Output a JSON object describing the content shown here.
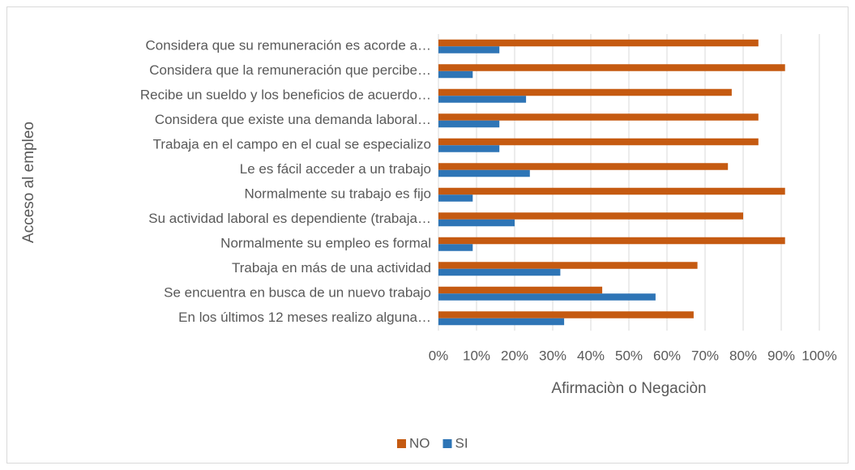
{
  "chart_data": {
    "type": "hbar",
    "x_label": "Afirmaciòn o Negaciòn",
    "y_label": "Acceso al empleo",
    "categories": [
      "Considera que su remuneración es acorde a…",
      "Considera que la remuneración que percibe…",
      "Recibe un sueldo y los beneficios de acuerdo…",
      "Considera que existe una demanda laboral…",
      "Trabaja en el campo en el cual se especializo",
      "Le es fácil acceder a un trabajo",
      "Normalmente su trabajo es fijo",
      "Su actividad laboral es dependiente (trabaja…",
      "Normalmente su empleo es formal",
      "Trabaja en más de una actividad",
      "Se encuentra en busca de un nuevo trabajo",
      "En los últimos 12 meses realizo alguna…"
    ],
    "series": [
      {
        "name": "NO",
        "color": "#c55a11",
        "values": [
          84,
          91,
          77,
          84,
          84,
          76,
          91,
          80,
          91,
          68,
          43,
          67
        ]
      },
      {
        "name": "SI",
        "color": "#2e75b6",
        "values": [
          16,
          9,
          23,
          16,
          16,
          24,
          9,
          20,
          9,
          32,
          57,
          33
        ]
      }
    ],
    "xlim": [
      0,
      100
    ],
    "xticks": [
      {
        "value": 0,
        "label": "0%"
      },
      {
        "value": 10,
        "label": "10%"
      },
      {
        "value": 20,
        "label": "20%"
      },
      {
        "value": 30,
        "label": "30%"
      },
      {
        "value": 40,
        "label": "40%"
      },
      {
        "value": 50,
        "label": "50%"
      },
      {
        "value": 60,
        "label": "60%"
      },
      {
        "value": 70,
        "label": "70%"
      },
      {
        "value": 80,
        "label": "80%"
      },
      {
        "value": 90,
        "label": "90%"
      },
      {
        "value": 100,
        "label": "100%"
      }
    ],
    "grid": true,
    "legend": "bottom"
  }
}
